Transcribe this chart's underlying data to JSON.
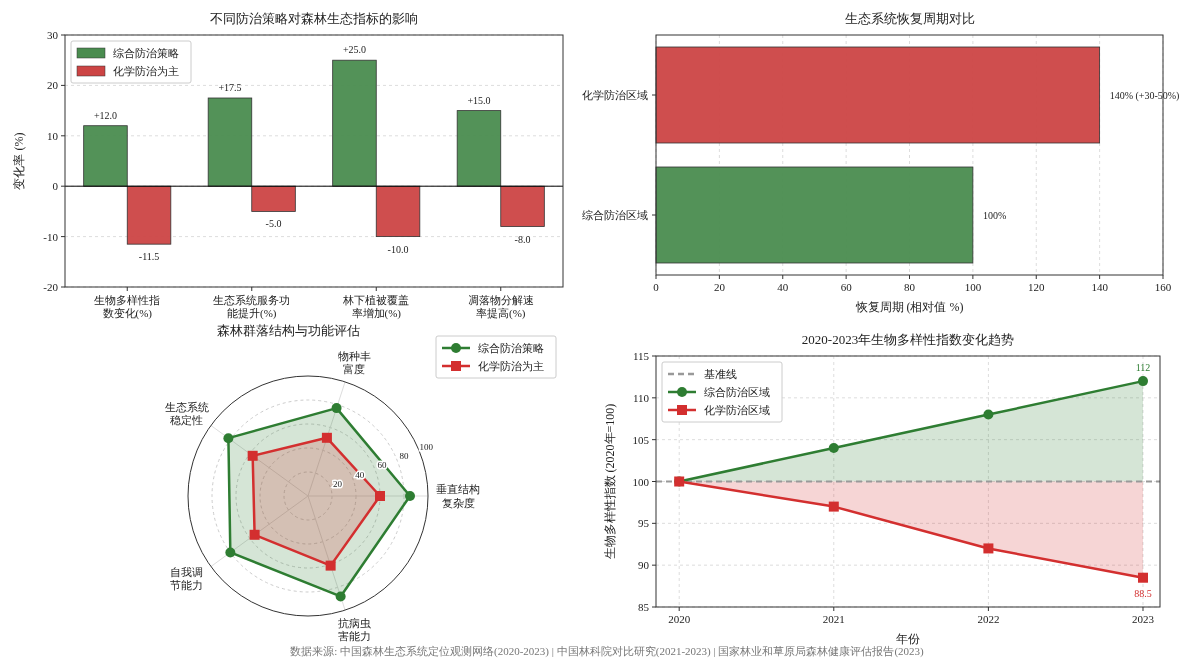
{
  "chart_data": [
    {
      "type": "bar",
      "title": "不同防治策略对森林生态指标的影响",
      "ylabel": "变化率 (%)",
      "categories": [
        "生物多样性指数变化(%)",
        "生态系统服务功能提升(%)",
        "林下植被覆盖率增加(%)",
        "凋落物分解速率提高(%)"
      ],
      "series": [
        {
          "name": "综合防治策略",
          "color": "#4a8c4f",
          "values": [
            12,
            17.5,
            25,
            15
          ],
          "value_labels": [
            "+12.0",
            "+17.5",
            "+25.0",
            "+15.0"
          ]
        },
        {
          "name": "化学防治为主",
          "color": "#cc4444",
          "values": [
            -11.5,
            -5,
            -10,
            -8
          ],
          "value_labels": [
            "-11.5",
            "-5.0",
            "-10.0",
            "-8.0"
          ]
        }
      ],
      "ylim": [
        -20,
        30
      ],
      "yticks": [
        -20,
        -10,
        0,
        10,
        20,
        30
      ],
      "grid": "y",
      "legend": "top left",
      "ref_lines": [
        {
          "axis": "y",
          "value": 0,
          "color": "#000000",
          "line_style": "solid"
        }
      ]
    },
    {
      "type": "bar",
      "orientation": "horizontal",
      "title": "生态系统恢复周期对比",
      "xlabel": "恢复周期 (相对值 %)",
      "categories": [
        "化学防治区域",
        "综合防治区域"
      ],
      "values": [
        140,
        100
      ],
      "colors": [
        "#cc4444",
        "#4a8c4f"
      ],
      "value_labels": [
        "140% (+30-50%)",
        "100%"
      ],
      "xlim": [
        0,
        160
      ],
      "xticks": [
        0,
        20,
        40,
        60,
        80,
        100,
        120,
        140,
        160
      ],
      "grid": "x"
    },
    {
      "type": "radar",
      "title": "森林群落结构与功能评估",
      "categories": [
        "物种丰富度",
        "垂直结构复杂度",
        "抗病虫害能力",
        "自我调节能力",
        "生态系统稳定性"
      ],
      "series": [
        {
          "name": "综合防治策略",
          "color": "#2e7d32",
          "values": [
            77,
            85,
            88,
            80,
            82
          ],
          "marker": "circle"
        },
        {
          "name": "化学防治为主",
          "color": "#d32f2f",
          "values": [
            51,
            60,
            61,
            55,
            57
          ],
          "marker": "square"
        }
      ],
      "ylim": [
        0,
        100
      ],
      "yticks": [
        20,
        40,
        60,
        80,
        100
      ],
      "grid": true,
      "legend": "top right"
    },
    {
      "type": "line",
      "title": "2020-2023年生物多样性指数变化趋势",
      "xlabel": "年份",
      "ylabel": "生物多样性指数 (2020年=100)",
      "x": [
        2020,
        2021,
        2022,
        2023
      ],
      "series": [
        {
          "name": "综合防治区域",
          "color": "#2e7d32",
          "values": [
            100,
            104,
            108,
            112
          ],
          "lower": [
            100,
            100,
            100,
            100
          ],
          "upper": [
            100,
            104,
            108,
            112
          ],
          "marker": "circle",
          "value_labels": [
            null,
            null,
            null,
            "112"
          ]
        },
        {
          "name": "化学防治区域",
          "color": "#d32f2f",
          "values": [
            100,
            97,
            92,
            88.5
          ],
          "lower": [
            100,
            97,
            92,
            88.5
          ],
          "upper": [
            100,
            100,
            100,
            100
          ],
          "marker": "square",
          "value_labels": [
            null,
            null,
            null,
            "88.5"
          ]
        }
      ],
      "ref_lines": [
        {
          "axis": "y",
          "value": 100,
          "label": "基准线",
          "color": "#999999",
          "line_style": "dashed"
        }
      ],
      "xlim": [
        2019.85,
        2023.11
      ],
      "xticks": [
        2020,
        2021,
        2022,
        2023
      ],
      "ylim": [
        85,
        115
      ],
      "yticks": [
        85,
        90,
        95,
        100,
        105,
        110,
        115
      ],
      "grid": true,
      "legend": "top left",
      "line_style": "solid",
      "annotations": [
        "数据来源: 中国森林生态系统定位观测网络(2020-2023) | 中国林科院对比研究(2021-2023) | 国家林业和草原局森林健康评估报告(2023)"
      ]
    }
  ]
}
